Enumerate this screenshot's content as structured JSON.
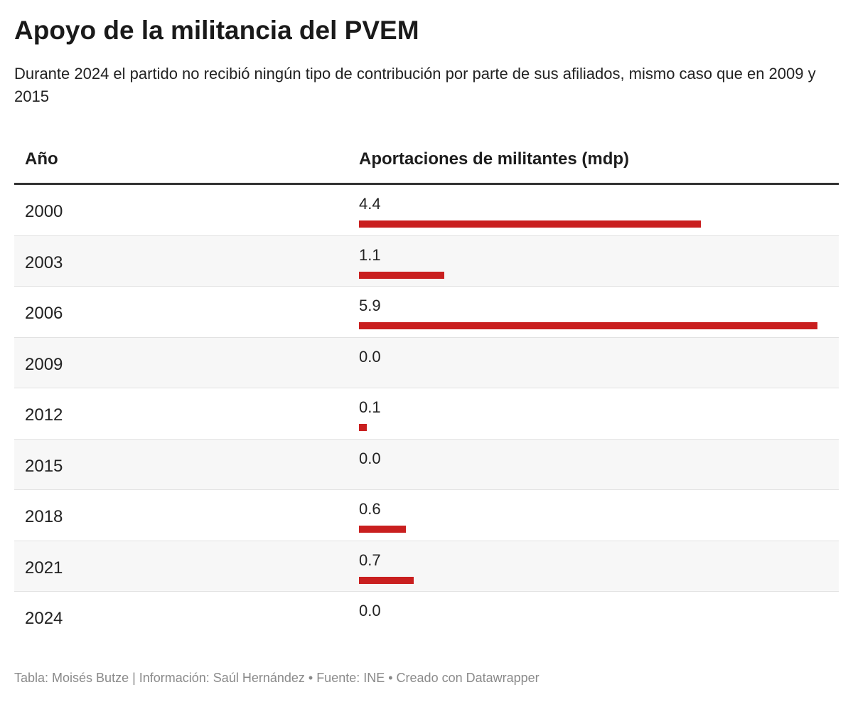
{
  "title": "Apoyo de la militancia del PVEM",
  "subtitle": "Durante 2024 el partido no recibió ningún tipo de contribución por parte de sus afiliados, mismo caso que en 2009 y 2015",
  "footer": "Tabla: Moisés Butze | Información: Saúl Hernández • Fuente: INE • Creado con Datawrapper",
  "chart_data": {
    "type": "table",
    "columns": [
      "Año",
      "Aportaciones de militantes (mdp)"
    ],
    "bar_color": "#c91f1f",
    "rows": [
      {
        "year": "2000",
        "value": 4.4,
        "label": "4.4"
      },
      {
        "year": "2003",
        "value": 1.1,
        "label": "1.1"
      },
      {
        "year": "2006",
        "value": 5.9,
        "label": "5.9"
      },
      {
        "year": "2009",
        "value": 0.0,
        "label": "0.0"
      },
      {
        "year": "2012",
        "value": 0.1,
        "label": "0.1"
      },
      {
        "year": "2015",
        "value": 0.0,
        "label": "0.0"
      },
      {
        "year": "2018",
        "value": 0.6,
        "label": "0.6"
      },
      {
        "year": "2021",
        "value": 0.7,
        "label": "0.7"
      },
      {
        "year": "2024",
        "value": 0.0,
        "label": "0.0"
      }
    ]
  }
}
